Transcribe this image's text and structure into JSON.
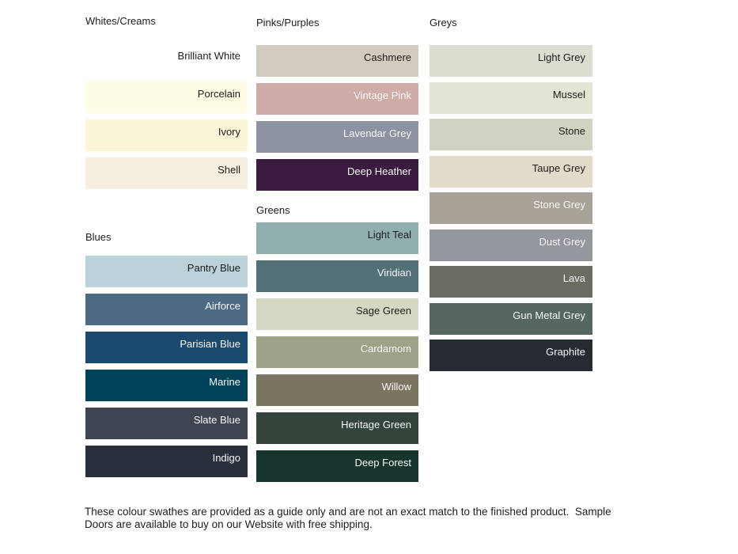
{
  "columns": [
    {
      "sections": [
        {
          "title": "Whites/Creams",
          "swatches": [
            {
              "name": "Brilliant White",
              "color": "#ffffff",
              "text": "#1d1d1b"
            },
            {
              "name": "Porcelain",
              "color": "#fffce5",
              "text": "#1d1d1b"
            },
            {
              "name": "Ivory",
              "color": "#fbf5d7",
              "text": "#1d1d1b"
            },
            {
              "name": "Shell",
              "color": "#f6eedf",
              "text": "#1d1d1b"
            }
          ]
        },
        {
          "title": "Blues",
          "swatches": [
            {
              "name": "Pantry Blue",
              "color": "#bad2d9",
              "text": "#1d1d1b"
            },
            {
              "name": "Airforce",
              "color": "#4e6a84",
              "text": "#f7f7f7"
            },
            {
              "name": "Parisian Blue",
              "color": "#1c4a6e",
              "text": "#f7f7f7"
            },
            {
              "name": "Marine",
              "color": "#004359",
              "text": "#f7f7f7"
            },
            {
              "name": "Slate Blue",
              "color": "#3e4550",
              "text": "#f7f7f7"
            },
            {
              "name": "Indigo",
              "color": "#2a303b",
              "text": "#f7f7f7"
            }
          ]
        }
      ]
    },
    {
      "sections": [
        {
          "title": "Pinks/Purples",
          "swatches": [
            {
              "name": "Cashmere",
              "color": "#d2ccbe",
              "text": "#1d1d1b"
            },
            {
              "name": "Vintage Pink",
              "color": "#cfaca7",
              "text": "#f7f7f7"
            },
            {
              "name": "Lavendar Grey",
              "color": "#8e93a4",
              "text": "#f7f7f7"
            },
            {
              "name": "Deep Heather",
              "color": "#3b1b40",
              "text": "#f7f7f7"
            }
          ]
        },
        {
          "title": "Greens",
          "swatches": [
            {
              "name": "Light Teal",
              "color": "#8fb0ae",
              "text": "#1d1d1b"
            },
            {
              "name": "Viridian",
              "color": "#527077",
              "text": "#f7f7f7"
            },
            {
              "name": "Sage Green",
              "color": "#d2d8c2",
              "text": "#1d1d1b"
            },
            {
              "name": "Cardamom",
              "color": "#9ea387",
              "text": "#f7f7f7"
            },
            {
              "name": "Willow",
              "color": "#7a755f",
              "text": "#f7f7f7"
            },
            {
              "name": "Heritage Green",
              "color": "#33443a",
              "text": "#f7f7f7"
            },
            {
              "name": "Deep Forest",
              "color": "#17352e",
              "text": "#f7f7f7"
            }
          ]
        }
      ]
    },
    {
      "sections": [
        {
          "title": "Greys",
          "swatches": [
            {
              "name": "Light Grey",
              "color": "#dcddd1",
              "text": "#1d1d1b"
            },
            {
              "name": "Mussel",
              "color": "#e3e4d3",
              "text": "#1d1d1b"
            },
            {
              "name": "Stone",
              "color": "#d0d2c2",
              "text": "#1d1d1b"
            },
            {
              "name": "Taupe Grey",
              "color": "#e2dbc9",
              "text": "#1d1d1b"
            },
            {
              "name": "Stone Grey",
              "color": "#a8a299",
              "text": "#f7f7f7"
            },
            {
              "name": "Dust Grey",
              "color": "#94979e",
              "text": "#f7f7f7"
            },
            {
              "name": "Lava",
              "color": "#6b6c62",
              "text": "#f7f7f7"
            },
            {
              "name": "Gun Metal Grey",
              "color": "#566763",
              "text": "#f7f7f7"
            },
            {
              "name": "Graphite",
              "color": "#262b31",
              "text": "#f7f7f7"
            }
          ]
        }
      ]
    }
  ],
  "footer": {
    "line1": "These colour swathes are provided as a guide only and are not an exact match to the finished product.  Sample",
    "line2": "Doors are available to buy on our Website with free shipping."
  }
}
